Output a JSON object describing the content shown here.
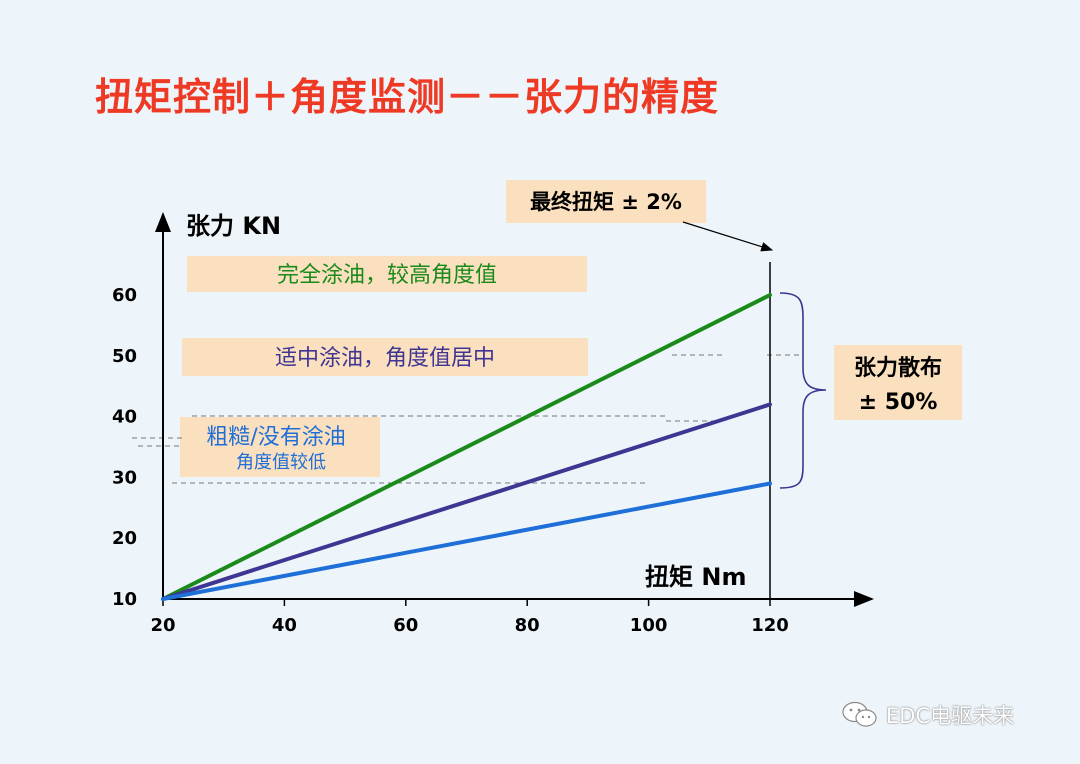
{
  "title": "扭矩控制＋角度监测－－张力的精度",
  "chart_data": {
    "type": "line",
    "ylabel": "张力 KN",
    "xlabel": "扭矩 Nm",
    "xlim": [
      20,
      130
    ],
    "ylim": [
      10,
      66
    ],
    "xticks": [
      20,
      40,
      60,
      80,
      100,
      120
    ],
    "yticks": [
      10,
      20,
      30,
      40,
      50,
      60
    ],
    "grid": false,
    "series": [
      {
        "x": [
          20,
          120
        ],
        "y": [
          10,
          60
        ],
        "color": "#1a8a1a"
      },
      {
        "x": [
          20,
          120
        ],
        "y": [
          10,
          42
        ],
        "color": "#3f3592"
      },
      {
        "x": [
          20,
          120
        ],
        "y": [
          10,
          29
        ],
        "color": "#1f6fd8"
      }
    ],
    "annotations": {
      "high_label": "完全涂油，较高角度值",
      "mid_label": "适中涂油，角度值居中",
      "low_label_1": "粗糙/没有涂油",
      "low_label_2": "角度值较低",
      "final_torque": "最终扭矩 ± 2%",
      "spread_1": "张力散布",
      "spread_2": "± 50%",
      "label_colors": {
        "high": "#1a8a1a",
        "mid": "#3f3592",
        "low": "#1f6fd8"
      },
      "box_color": "#fbe0bf"
    }
  },
  "watermark": {
    "text": "EDC电驱未来",
    "icon": "wechat-icon"
  }
}
